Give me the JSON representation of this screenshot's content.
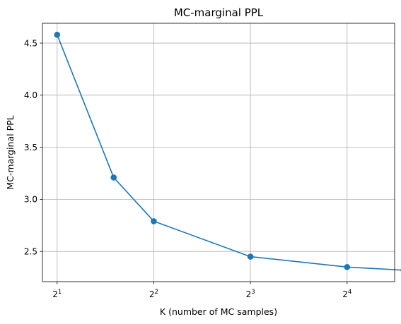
{
  "chart_data": {
    "type": "line",
    "title": "MC-marginal PPL",
    "xlabel": "K (number of MC samples)",
    "ylabel": "MC-marginal PPL",
    "x_scale": "log2",
    "xlim": [
      1.8,
      22.5
    ],
    "ylim": [
      2.21,
      4.69
    ],
    "grid": true,
    "x_ticks": [
      {
        "value": 2,
        "base": "2",
        "exp": "1"
      },
      {
        "value": 4,
        "base": "2",
        "exp": "2"
      },
      {
        "value": 8,
        "base": "2",
        "exp": "3"
      },
      {
        "value": 16,
        "base": "2",
        "exp": "4"
      }
    ],
    "y_ticks": [
      {
        "value": 2.5,
        "label": "2.5"
      },
      {
        "value": 3.0,
        "label": "3.0"
      },
      {
        "value": 3.5,
        "label": "3.5"
      },
      {
        "value": 4.0,
        "label": "4.0"
      },
      {
        "value": 4.5,
        "label": "4.5"
      }
    ],
    "series": [
      {
        "color": "#1f77b4",
        "marker": "circle",
        "x": [
          2,
          3,
          4,
          8,
          16,
          24
        ],
        "y": [
          4.58,
          3.21,
          2.79,
          2.45,
          2.35,
          2.32
        ]
      }
    ]
  }
}
